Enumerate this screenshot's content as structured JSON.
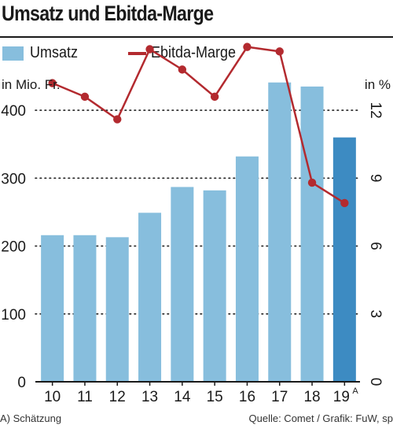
{
  "title": "Umsatz und Ebitda-Marge",
  "legend": {
    "bar_label": "Umsatz",
    "line_label": "Ebitda-Marge"
  },
  "colors": {
    "bar": "#87bedd",
    "bar_highlight": "#3d8bc2",
    "line": "#b32a2f"
  },
  "footnote": "A) Schätzung",
  "source": "Quelle: Comet / Grafik: FuW, sp",
  "chart_data": {
    "type": "bar",
    "categories": [
      "10",
      "11",
      "12",
      "13",
      "14",
      "15",
      "16",
      "17",
      "18",
      "19"
    ],
    "category_superscripts": [
      "",
      "",
      "",
      "",
      "",
      "",
      "",
      "",
      "",
      "A"
    ],
    "highlight_index": 9,
    "series": [
      {
        "name": "Umsatz",
        "type": "bar",
        "axis": "left",
        "values": [
          216,
          216,
          213,
          249,
          287,
          282,
          332,
          441,
          435,
          360
        ]
      },
      {
        "name": "Ebitda-Marge",
        "type": "line",
        "axis": "right",
        "values": [
          13.2,
          12.6,
          11.6,
          14.7,
          13.8,
          12.6,
          14.8,
          14.6,
          8.8,
          7.9
        ]
      }
    ],
    "y_left": {
      "label": "in Mio. Fr.",
      "ylim": [
        0,
        450
      ],
      "ticks": [
        0,
        100,
        200,
        300,
        400
      ]
    },
    "y_right": {
      "label": "in %",
      "ylim": [
        0,
        13.5
      ],
      "ticks": [
        0,
        3,
        6,
        9,
        12
      ]
    },
    "grid": "dotted",
    "legend_position": "top-left"
  }
}
